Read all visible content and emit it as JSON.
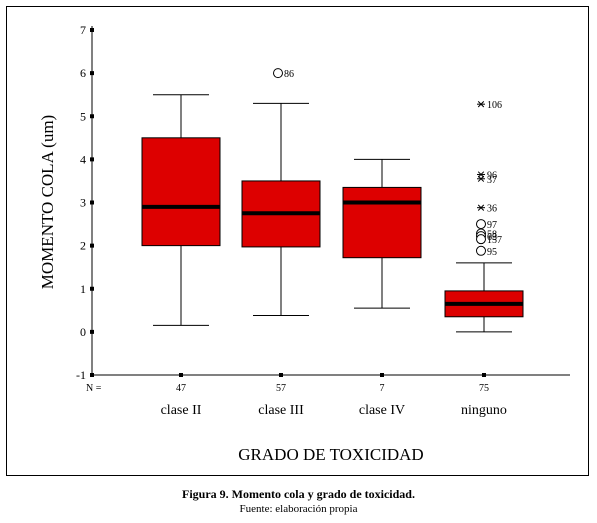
{
  "figure": {
    "caption": "Figura 9.  Momento cola y grado de toxicidad.",
    "source": "Fuente: elaboración propia"
  },
  "chart_data": {
    "type": "boxplot",
    "ylabel": "MOMENTO COLA (um)",
    "xlabel": "GRADO DE TOXICIDAD",
    "ylim": [
      -1,
      7
    ],
    "yticks": [
      -1,
      0,
      1,
      2,
      3,
      4,
      5,
      6,
      7
    ],
    "n_label": "N =",
    "box_color": "#dd0000",
    "categories": [
      "clase II",
      "clase III",
      "clase IV",
      "ninguno"
    ],
    "n": [
      "47",
      "57",
      "7",
      "75"
    ],
    "boxes": [
      {
        "whisker_low": 0.15,
        "q1": 2.0,
        "median": 2.9,
        "q3": 4.5,
        "whisker_high": 5.5
      },
      {
        "whisker_low": 0.38,
        "q1": 1.97,
        "median": 2.75,
        "q3": 3.5,
        "whisker_high": 5.3
      },
      {
        "whisker_low": 0.55,
        "q1": 1.72,
        "median": 3.0,
        "q3": 3.35,
        "whisker_high": 4.0
      },
      {
        "whisker_low": 0.0,
        "q1": 0.35,
        "median": 0.65,
        "q3": 0.95,
        "whisker_high": 1.6
      }
    ],
    "outliers": [
      {
        "group": 1,
        "value": 6.0,
        "label": "86",
        "marker": "circle"
      },
      {
        "group": 3,
        "value": 5.28,
        "label": "106",
        "marker": "star"
      },
      {
        "group": 3,
        "value": 3.65,
        "label": "96",
        "marker": "star"
      },
      {
        "group": 3,
        "value": 3.55,
        "label": "37",
        "marker": "star"
      },
      {
        "group": 3,
        "value": 2.88,
        "label": "36",
        "marker": "star"
      },
      {
        "group": 3,
        "value": 2.5,
        "label": "97",
        "marker": "circle"
      },
      {
        "group": 3,
        "value": 2.28,
        "label": "58",
        "marker": "circle"
      },
      {
        "group": 3,
        "value": 2.22,
        "label": "63",
        "marker": "circle"
      },
      {
        "group": 3,
        "value": 2.15,
        "label": "157",
        "marker": "circle"
      },
      {
        "group": 3,
        "value": 1.88,
        "label": "95",
        "marker": "circle"
      }
    ]
  }
}
